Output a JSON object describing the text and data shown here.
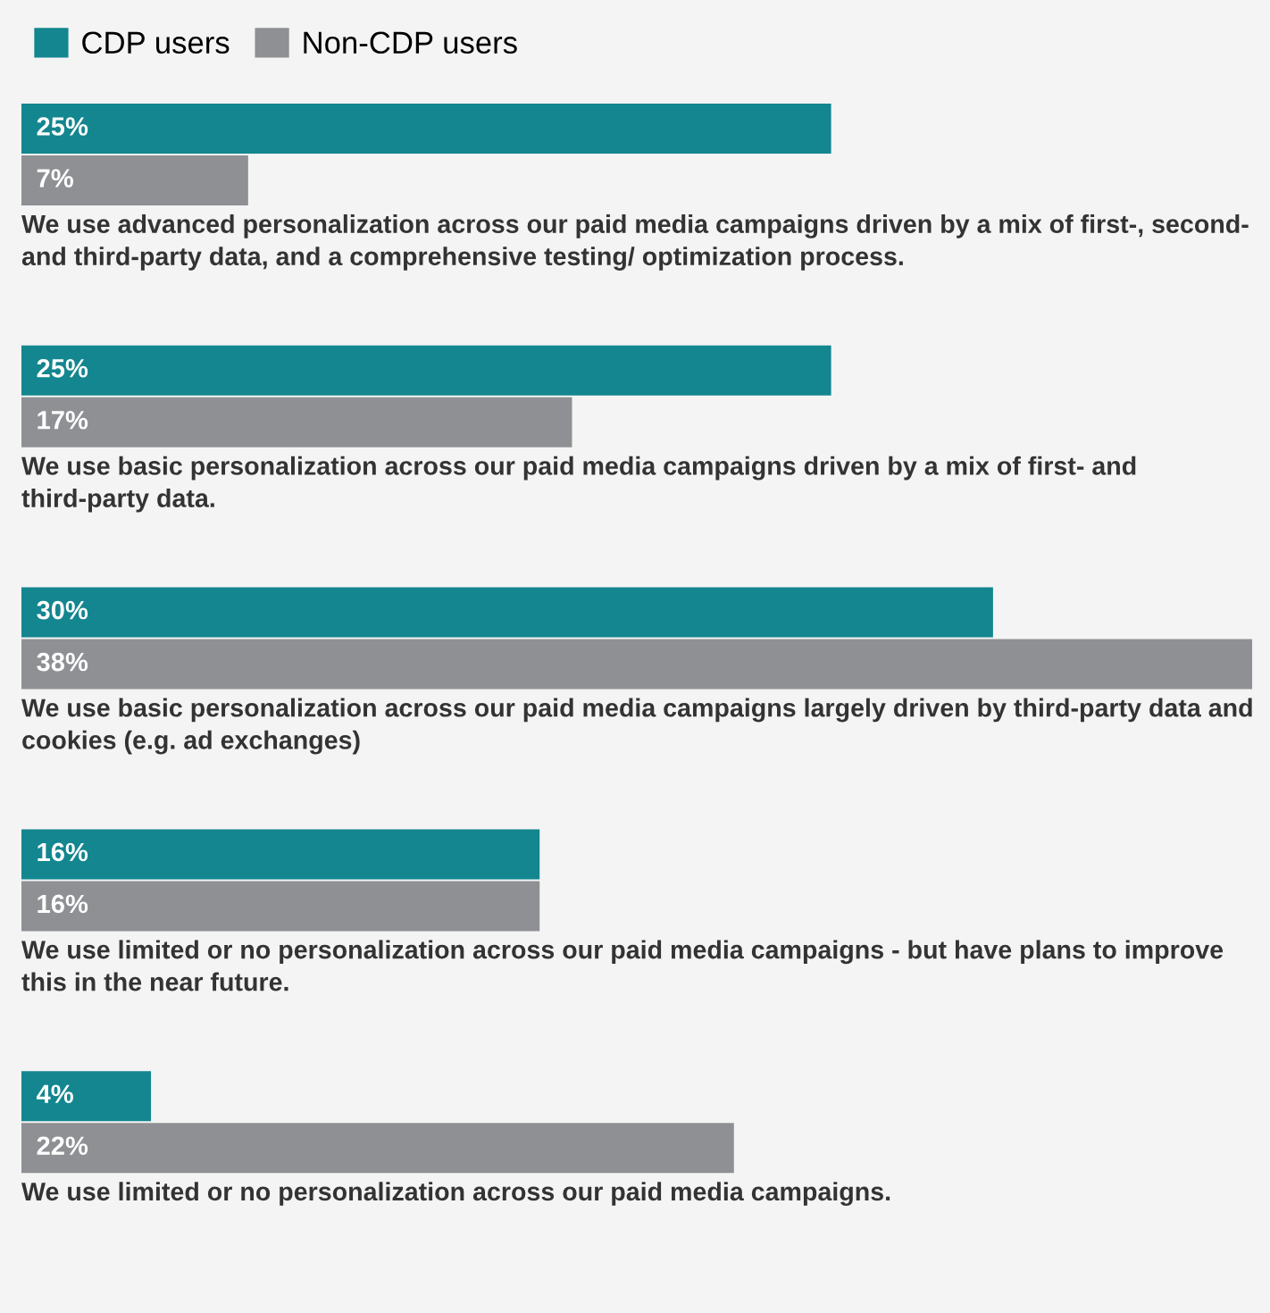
{
  "chart_data": {
    "type": "bar",
    "orientation": "horizontal",
    "legend": "top left",
    "categories": [
      "We use advanced personalization across our paid media campaigns driven by a mix of first-, second- and third-party data, and a comprehensive testing/ optimization process.",
      "We use basic personalization across our paid media campaigns driven by a mix of first- and third-party data.",
      "We use basic personalization across our paid media campaigns largely driven by third-party data and cookies (e.g. ad exchanges)",
      "We use limited or no personalization across our paid media campaigns - but have plans to improve this in the near future.",
      "We use limited or no personalization across our paid media campaigns."
    ],
    "series": [
      {
        "name": "CDP users",
        "color": "#13868f",
        "values": [
          25,
          25,
          30,
          16,
          4
        ],
        "value_labels": [
          "25%",
          "25%",
          "30%",
          "16%",
          "4%"
        ]
      },
      {
        "name": "Non-CDP users",
        "color": "#8e9094",
        "values": [
          7,
          17,
          38,
          16,
          22
        ],
        "value_labels": [
          "7%",
          "17%",
          "38%",
          "16%",
          "22%"
        ]
      }
    ]
  }
}
